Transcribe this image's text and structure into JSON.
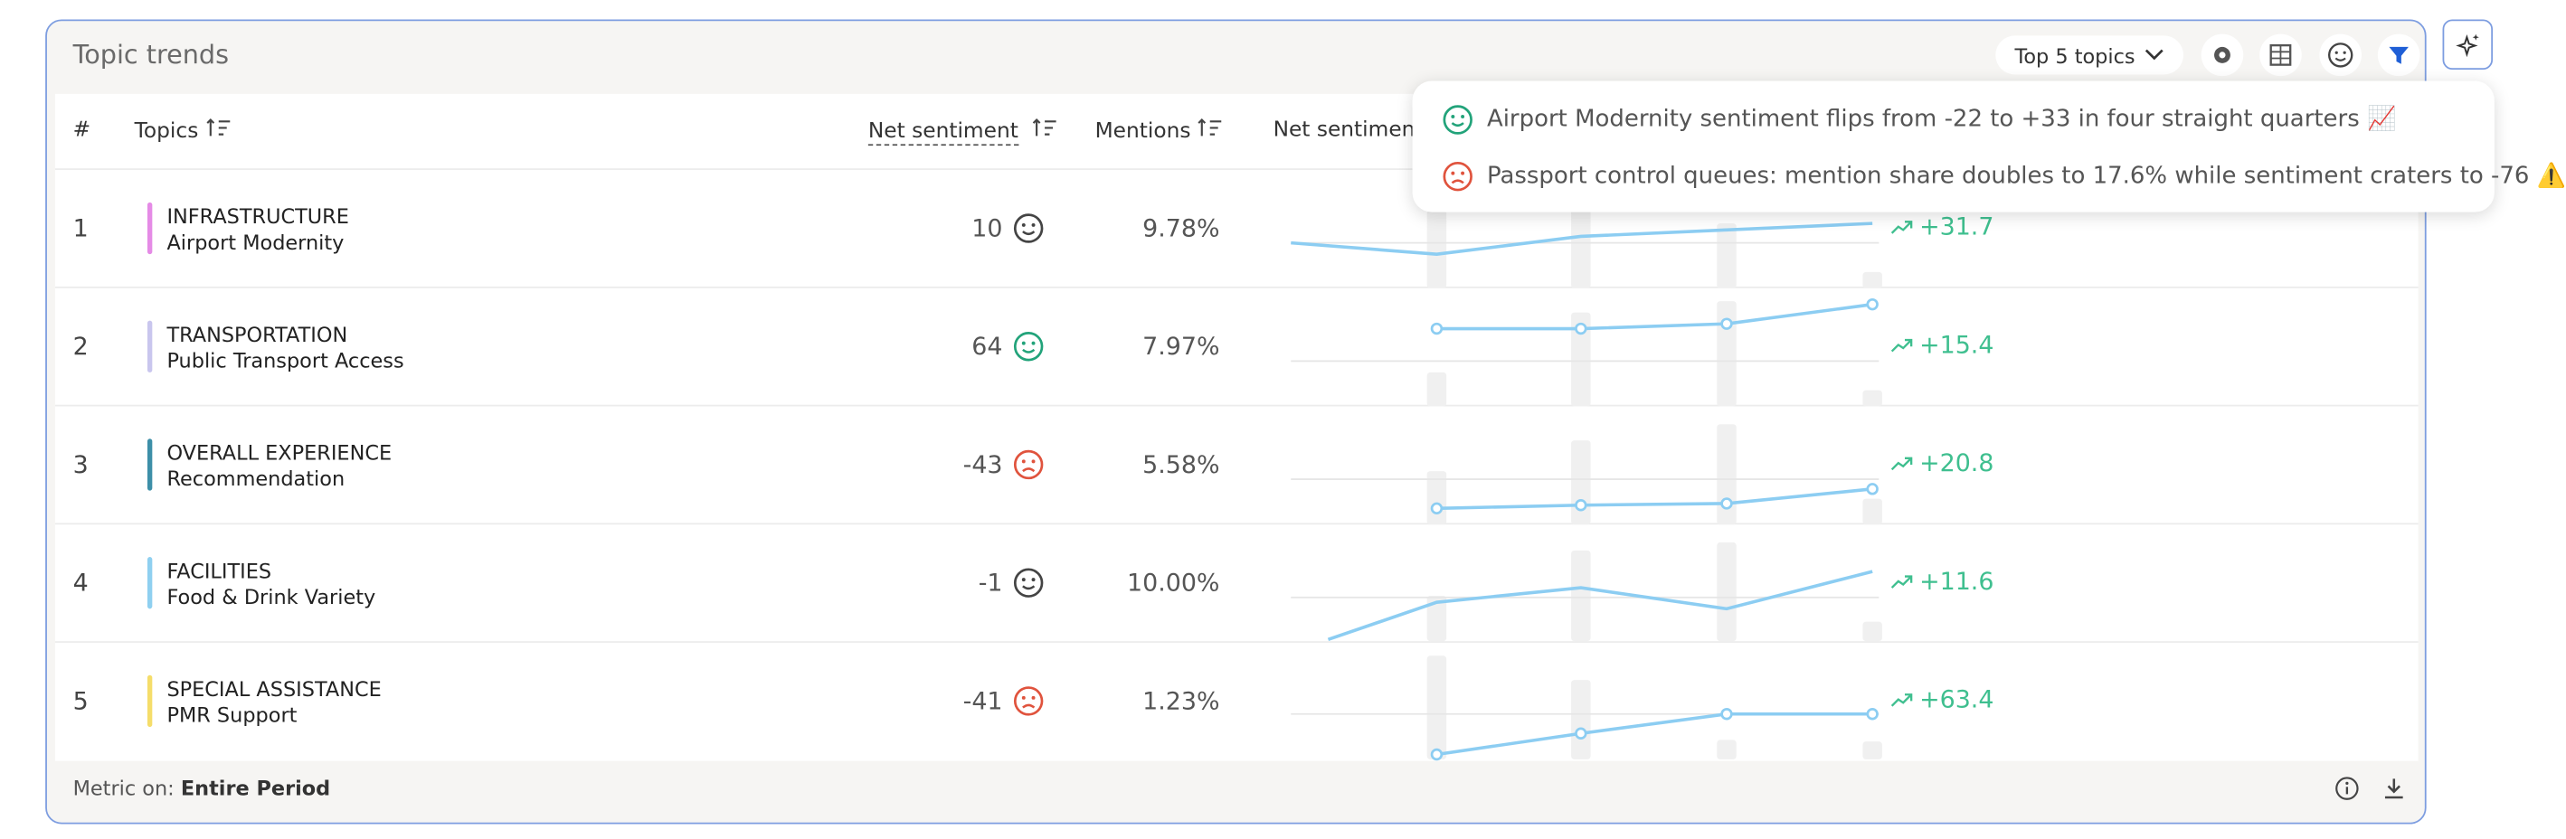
{
  "header": {
    "title": "Topic trends",
    "topic_filter": "Top 5 topics"
  },
  "table": {
    "columns": [
      "#",
      "Topics",
      "Net sentiment",
      "Mentions",
      "Net sentiment trend"
    ],
    "rows": [
      {
        "index": 1,
        "category": "INFRASTRUCTURE",
        "topic": "Airport Modernity",
        "color": "#e58be6",
        "net_sentiment": 10,
        "sentiment": "neutral",
        "mentions": "9.78%",
        "trend_change": "+31.7"
      },
      {
        "index": 2,
        "category": "TRANSPORTATION",
        "topic": "Public Transport Access",
        "color": "#c9c6ee",
        "net_sentiment": 64,
        "sentiment": "positive",
        "mentions": "7.97%",
        "trend_change": "+15.4"
      },
      {
        "index": 3,
        "category": "OVERALL EXPERIENCE",
        "topic": "Recommendation",
        "color": "#3d8fa8",
        "net_sentiment": -43,
        "sentiment": "negative",
        "mentions": "5.58%",
        "trend_change": "+20.8"
      },
      {
        "index": 4,
        "category": "FACILITIES",
        "topic": "Food & Drink Variety",
        "color": "#8fd0f0",
        "net_sentiment": -1,
        "sentiment": "neutral",
        "mentions": "10.00%",
        "trend_change": "+11.6"
      },
      {
        "index": 5,
        "category": "SPECIAL ASSISTANCE",
        "topic": "PMR Support",
        "color": "#f5dd6a",
        "net_sentiment": -41,
        "sentiment": "negative",
        "mentions": "1.23%",
        "trend_change": "+63.4"
      }
    ]
  },
  "footer": {
    "label": "Metric on:",
    "period": "Entire Period"
  },
  "insights": [
    {
      "sentiment": "positive",
      "text": "Airport Modernity sentiment flips from -22 to +33 in four straight quarters 📈"
    },
    {
      "sentiment": "negative",
      "text": "Passport control queues: mention share doubles to 17.6% while sentiment craters to -76 ⚠️"
    }
  ]
}
